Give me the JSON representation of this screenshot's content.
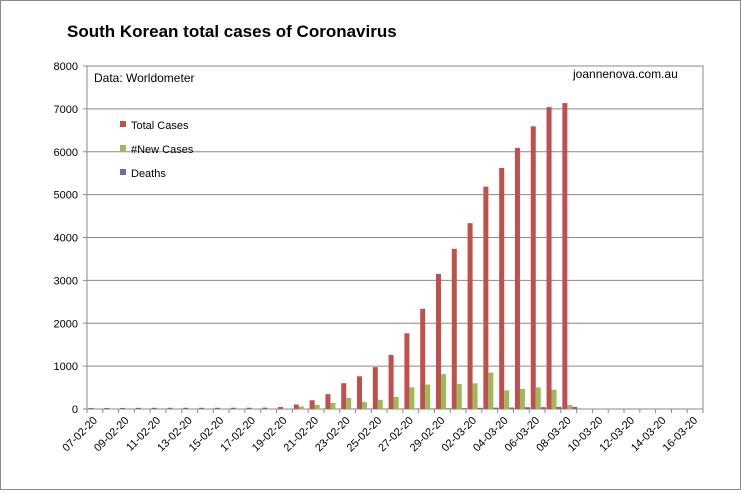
{
  "chart_data": {
    "type": "bar",
    "title": "South Korean total cases of Coronavirus",
    "source_note": "Data: Worldometer",
    "watermark": "joannenova.com.au",
    "ylim": [
      0,
      8000
    ],
    "yticks": [
      0,
      1000,
      2000,
      3000,
      4000,
      5000,
      6000,
      7000,
      8000
    ],
    "grid": true,
    "legend_position": "top-left",
    "xtick_labels": [
      "07-02-20",
      "09-02-20",
      "11-02-20",
      "13-02-20",
      "15-02-20",
      "17-02-20",
      "19-02-20",
      "21-02-20",
      "23-02-20",
      "25-02-20",
      "27-02-20",
      "29-02-20",
      "02-03-20",
      "04-03-20",
      "06-03-20",
      "08-03-20",
      "10-03-20",
      "12-03-20",
      "14-03-20",
      "16-03-20"
    ],
    "categories": [
      "07-02-20",
      "08-02-20",
      "09-02-20",
      "10-02-20",
      "11-02-20",
      "12-02-20",
      "13-02-20",
      "14-02-20",
      "15-02-20",
      "16-02-20",
      "17-02-20",
      "18-02-20",
      "19-02-20",
      "20-02-20",
      "21-02-20",
      "22-02-20",
      "23-02-20",
      "24-02-20",
      "25-02-20",
      "26-02-20",
      "27-02-20",
      "28-02-20",
      "29-02-20",
      "01-03-20",
      "02-03-20",
      "03-03-20",
      "04-03-20",
      "05-03-20",
      "06-03-20",
      "07-03-20",
      "08-03-20",
      "09-03-20",
      "10-03-20",
      "11-03-20",
      "12-03-20",
      "13-03-20",
      "14-03-20",
      "15-03-20",
      "16-03-20"
    ],
    "series": [
      {
        "name": "Total Cases",
        "color": "#c0504d",
        "values": [
          24,
          24,
          25,
          27,
          28,
          28,
          28,
          28,
          28,
          29,
          30,
          31,
          46,
          104,
          204,
          346,
          602,
          763,
          977,
          1261,
          1766,
          2337,
          3150,
          3736,
          4335,
          5186,
          5621,
          6088,
          6593,
          7041,
          7134,
          null,
          null,
          null,
          null,
          null,
          null,
          null,
          null
        ]
      },
      {
        "name": "#New Cases",
        "color": "#9bbb59",
        "values": [
          0,
          0,
          1,
          2,
          1,
          0,
          0,
          0,
          0,
          1,
          1,
          1,
          15,
          58,
          100,
          142,
          256,
          161,
          214,
          284,
          505,
          571,
          813,
          586,
          599,
          851,
          435,
          467,
          505,
          448,
          93,
          null,
          null,
          null,
          null,
          null,
          null,
          null,
          null
        ]
      },
      {
        "name": "Deaths",
        "color": "#8064a2",
        "values": [
          0,
          0,
          0,
          0,
          0,
          0,
          0,
          0,
          0,
          0,
          0,
          0,
          0,
          1,
          2,
          2,
          6,
          8,
          10,
          12,
          13,
          13,
          17,
          20,
          28,
          32,
          35,
          42,
          44,
          50,
          50,
          null,
          null,
          null,
          null,
          null,
          null,
          null,
          null
        ]
      }
    ]
  }
}
